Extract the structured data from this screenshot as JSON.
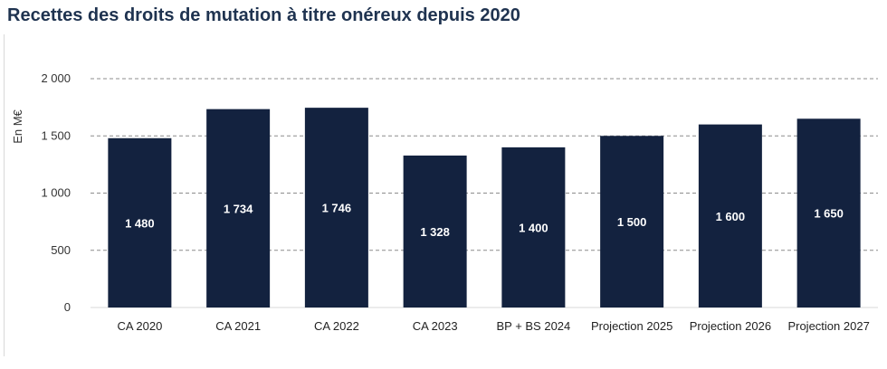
{
  "chart_data": {
    "type": "bar",
    "title": "Recettes des droits de mutation à titre onéreux depuis 2020",
    "ylabel": "En M€",
    "xlabel": "",
    "ylim": [
      0,
      2000
    ],
    "yticks": [
      0,
      500,
      1000,
      1500,
      2000
    ],
    "ytick_labels": [
      "0",
      "500",
      "1 000",
      "1 500",
      "2 000"
    ],
    "grid": true,
    "categories": [
      "CA 2020",
      "CA 2021",
      "CA 2022",
      "CA 2023",
      "BP + BS 2024",
      "Projection 2025",
      "Projection 2026",
      "Projection 2027"
    ],
    "values": [
      1480,
      1734,
      1746,
      1328,
      1400,
      1500,
      1600,
      1650
    ],
    "value_labels": [
      "1 480",
      "1 734",
      "1 746",
      "1 328",
      "1 400",
      "1 500",
      "1 600",
      "1 650"
    ],
    "bar_color": "#13223f",
    "grid_color": "#8c8c8c"
  }
}
